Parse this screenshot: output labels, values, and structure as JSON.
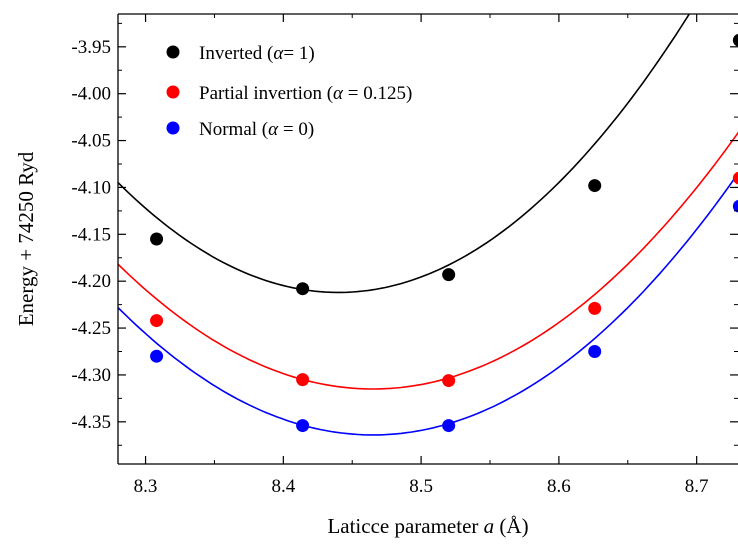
{
  "chart_data": {
    "type": "scatter",
    "title": "",
    "xlabel_prefix": "Laticce parameter ",
    "xlabel_var": "a",
    "xlabel_unit": " (Å)",
    "ylabel": "Energy + 74250 Ryd",
    "xlim": [
      8.28,
      8.73
    ],
    "ylim": [
      -4.395,
      -3.915
    ],
    "x_ticks": [
      "8.3",
      "8.4",
      "8.5",
      "8.6",
      "8.7"
    ],
    "y_ticks": [
      "-3.95",
      "-4.00",
      "-4.05",
      "-4.10",
      "-4.15",
      "-4.20",
      "-4.25",
      "-4.30",
      "-4.35"
    ],
    "grid": false,
    "legend_position": "top-left",
    "series": [
      {
        "name_prefix": "Inverted (",
        "name_var": "α",
        "name_suffix": "= 1)",
        "color": "#000000",
        "x": [
          8.308,
          8.414,
          8.52,
          8.626,
          8.731
        ],
        "y": [
          -4.155,
          -4.208,
          -4.193,
          -4.098,
          -3.943
        ],
        "fit_coeffs": [
          -4.212,
          8.44,
          4.58
        ]
      },
      {
        "name_prefix": "Partial invertion (",
        "name_var": "α",
        "name_suffix": " = 0.125)",
        "color": "#ff0000",
        "x": [
          8.308,
          8.414,
          8.52,
          8.626,
          8.731
        ],
        "y": [
          -4.242,
          -4.305,
          -4.306,
          -4.229,
          -4.09
        ],
        "fit_coeffs": [
          -4.315,
          8.465,
          3.89
        ]
      },
      {
        "name_prefix": "Normal (",
        "name_var": "α",
        "name_suffix": " = 0)",
        "color": "#0000ff",
        "x": [
          8.308,
          8.414,
          8.52,
          8.626,
          8.731
        ],
        "y": [
          -4.28,
          -4.354,
          -4.354,
          -4.275,
          -4.12
        ],
        "fit_coeffs": [
          -4.364,
          8.465,
          3.97
        ]
      }
    ]
  }
}
